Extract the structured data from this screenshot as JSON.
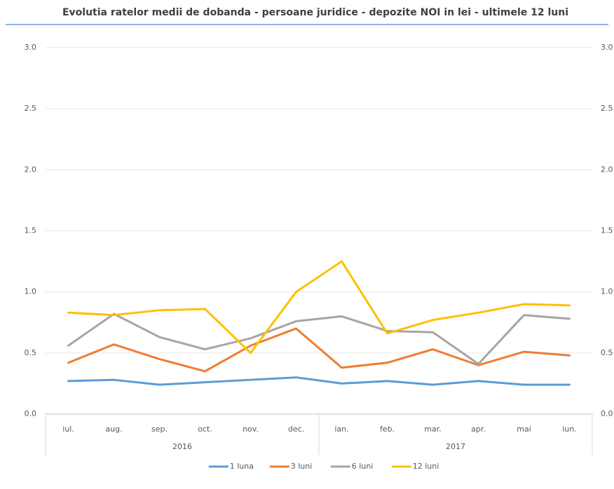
{
  "chart_data": {
    "type": "line",
    "title": "Evolutia ratelor medii de dobanda - persoane juridice - depozite NOI in lei - ultimele 12 luni",
    "categories": [
      "iul.",
      "aug.",
      "sep.",
      "oct.",
      "nov.",
      "dec.",
      "ian.",
      "feb.",
      "mar.",
      "apr.",
      "mai",
      "iun."
    ],
    "groups": [
      {
        "label": "2016",
        "count": 6
      },
      {
        "label": "2017",
        "count": 6
      }
    ],
    "series": [
      {
        "name": "1 luna",
        "color": "#5b9bd5",
        "values": [
          0.27,
          0.28,
          0.24,
          0.26,
          0.28,
          0.3,
          0.25,
          0.27,
          0.24,
          0.27,
          0.24,
          0.24
        ]
      },
      {
        "name": "3 luni",
        "color": "#ed7d31",
        "values": [
          0.42,
          0.57,
          0.45,
          0.35,
          0.56,
          0.7,
          0.38,
          0.42,
          0.53,
          0.4,
          0.51,
          0.48
        ]
      },
      {
        "name": "6 luni",
        "color": "#a5a5a5",
        "values": [
          0.56,
          0.82,
          0.63,
          0.53,
          0.62,
          0.76,
          0.8,
          0.68,
          0.67,
          0.41,
          0.81,
          0.78
        ]
      },
      {
        "name": "12 luni",
        "color": "#ffc000",
        "values": [
          0.83,
          0.81,
          0.85,
          0.86,
          0.5,
          1.0,
          1.25,
          0.66,
          0.77,
          0.83,
          0.9,
          0.89
        ]
      }
    ],
    "ylim": [
      0,
      3
    ],
    "yticks": [
      {
        "value": 0,
        "label": "0.0"
      },
      {
        "value": 0.5,
        "label": "0.5"
      },
      {
        "value": 1,
        "label": "1.0"
      },
      {
        "value": 1.5,
        "label": "1.5"
      },
      {
        "value": 2,
        "label": "2.0"
      },
      {
        "value": 2.5,
        "label": "2.5"
      },
      {
        "value": 3,
        "label": "3.0"
      }
    ],
    "y2lim": [
      0,
      3
    ],
    "y2ticks": [
      {
        "value": 0,
        "label": "0.0"
      },
      {
        "value": 0.5,
        "label": "0.5"
      },
      {
        "value": 1,
        "label": "1.0"
      },
      {
        "value": 1.5,
        "label": "1.5"
      },
      {
        "value": 2,
        "label": "2.0"
      },
      {
        "value": 2.5,
        "label": "2.5"
      },
      {
        "value": 3,
        "label": "3.0"
      }
    ],
    "grid": true,
    "legend": "bottom"
  }
}
